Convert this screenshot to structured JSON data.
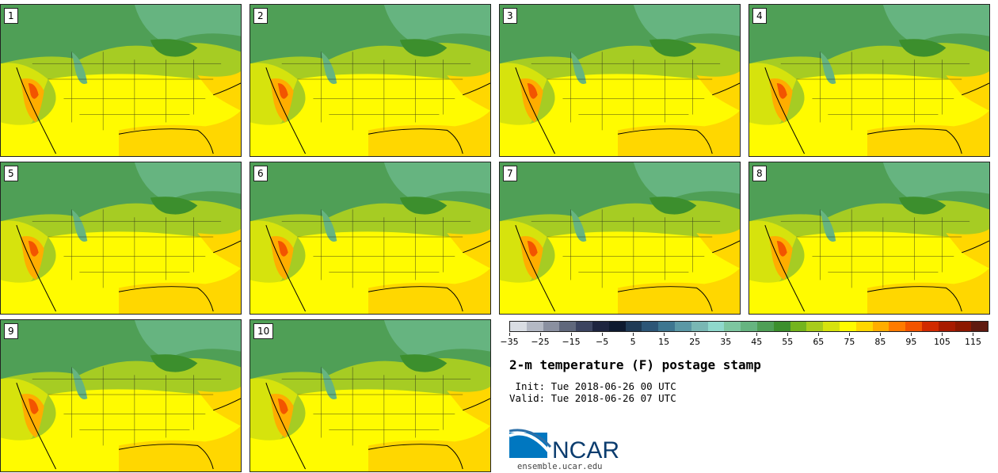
{
  "panels": [
    {
      "label": "1"
    },
    {
      "label": "2"
    },
    {
      "label": "3"
    },
    {
      "label": "4"
    },
    {
      "label": "5"
    },
    {
      "label": "6"
    },
    {
      "label": "7"
    },
    {
      "label": "8"
    },
    {
      "label": "9"
    },
    {
      "label": "10"
    }
  ],
  "colorbar": {
    "colors": [
      "#d9dde3",
      "#b4b9c4",
      "#8a90a0",
      "#60687c",
      "#3c4460",
      "#1e2540",
      "#0e1a30",
      "#1f3a55",
      "#2d5677",
      "#3e7690",
      "#5b98a5",
      "#79b7b4",
      "#8fd8cc",
      "#7dc6a0",
      "#66b480",
      "#4f9f56",
      "#3c8f2d",
      "#74b41d",
      "#a8cc1b",
      "#d6e30d",
      "#fffb00",
      "#ffd700",
      "#ffad00",
      "#ff7b00",
      "#f25400",
      "#d12a00",
      "#a81b00",
      "#8c1800",
      "#5f1a10"
    ],
    "tick_labels": [
      "−35",
      "−25",
      "−15",
      "−5",
      "5",
      "15",
      "25",
      "35",
      "45",
      "55",
      "65",
      "75",
      "85",
      "95",
      "105",
      "115"
    ]
  },
  "title": "2-m temperature (F) postage stamp",
  "init_line": " Init: Tue 2018-06-26 00 UTC",
  "valid_line": "Valid: Tue 2018-06-26 07 UTC",
  "logo": {
    "text": "NCAR",
    "url": "ensemble.ucar.edu"
  }
}
